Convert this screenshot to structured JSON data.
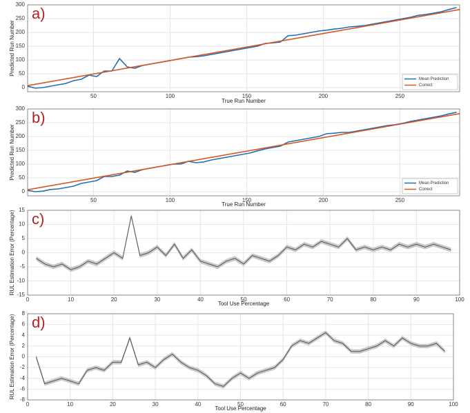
{
  "chart_data": [
    {
      "type": "line",
      "title": "a)",
      "xlabel": "True Run Number",
      "ylabel": "Predicted Run Number",
      "xlim": [
        7,
        289
      ],
      "ylim": [
        -15,
        300
      ],
      "xticks": [
        50,
        100,
        150,
        200,
        250
      ],
      "yticks": [
        0,
        50,
        100,
        150,
        200,
        250,
        300
      ],
      "grid": true,
      "legend": "lower right",
      "series": [
        {
          "name": "Mean Prediction",
          "color": "#1f6fb5",
          "x": [
            7,
            12,
            17,
            22,
            27,
            32,
            37,
            42,
            47,
            52,
            57,
            62,
            67,
            72,
            77,
            82,
            87,
            92,
            97,
            102,
            107,
            112,
            117,
            122,
            127,
            132,
            137,
            142,
            147,
            152,
            157,
            162,
            167,
            172,
            177,
            182,
            187,
            192,
            197,
            202,
            207,
            212,
            217,
            222,
            227,
            232,
            237,
            242,
            247,
            252,
            257,
            262,
            267,
            272,
            277,
            282,
            287
          ],
          "values": [
            5,
            -2,
            0,
            5,
            10,
            15,
            25,
            30,
            45,
            40,
            60,
            60,
            105,
            75,
            70,
            80,
            85,
            90,
            95,
            100,
            105,
            110,
            112,
            115,
            120,
            125,
            130,
            135,
            140,
            145,
            150,
            160,
            162,
            165,
            188,
            190,
            195,
            200,
            205,
            208,
            212,
            215,
            220,
            222,
            225,
            230,
            235,
            240,
            245,
            250,
            255,
            262,
            265,
            270,
            275,
            283,
            290
          ]
        },
        {
          "name": "Correct",
          "color": "#d9541e",
          "x": [
            7,
            289
          ],
          "values": [
            7,
            283
          ]
        }
      ]
    },
    {
      "type": "line",
      "title": "b)",
      "xlabel": "True Run Number",
      "ylabel": "Predicted Run Number",
      "xlim": [
        7,
        289
      ],
      "ylim": [
        -15,
        300
      ],
      "xticks": [
        50,
        100,
        150,
        200,
        250
      ],
      "yticks": [
        0,
        50,
        100,
        150,
        200,
        250,
        300
      ],
      "grid": true,
      "legend": "lower right",
      "series": [
        {
          "name": "Mean Prediction",
          "color": "#1f6fb5",
          "x": [
            7,
            12,
            17,
            22,
            27,
            32,
            37,
            42,
            47,
            52,
            57,
            62,
            67,
            72,
            77,
            82,
            87,
            92,
            97,
            102,
            107,
            112,
            117,
            122,
            127,
            132,
            137,
            142,
            147,
            152,
            157,
            162,
            167,
            172,
            177,
            182,
            187,
            192,
            197,
            202,
            207,
            212,
            217,
            222,
            227,
            232,
            237,
            242,
            247,
            252,
            257,
            262,
            267,
            272,
            277,
            282,
            287
          ],
          "values": [
            5,
            0,
            2,
            8,
            10,
            15,
            20,
            30,
            35,
            40,
            55,
            55,
            60,
            75,
            70,
            80,
            85,
            90,
            95,
            100,
            100,
            110,
            105,
            108,
            115,
            120,
            125,
            130,
            135,
            140,
            148,
            155,
            160,
            165,
            180,
            185,
            190,
            195,
            200,
            210,
            212,
            215,
            215,
            220,
            225,
            230,
            235,
            240,
            243,
            248,
            255,
            260,
            265,
            270,
            275,
            282,
            288
          ]
        },
        {
          "name": "Correct",
          "color": "#d9541e",
          "x": [
            7,
            289
          ],
          "values": [
            7,
            283
          ]
        }
      ]
    },
    {
      "type": "band",
      "title": "c)",
      "xlabel": "Tool Use Percentage",
      "ylabel": "RUL Estimation Error (Percentage)",
      "xlim": [
        0,
        100
      ],
      "ylim": [
        -15,
        15
      ],
      "xticks": [
        0,
        10,
        20,
        30,
        40,
        50,
        60,
        70,
        80,
        90,
        100
      ],
      "yticks": [
        -15,
        -10,
        -5,
        0,
        5,
        10,
        15
      ],
      "grid": true,
      "series": [
        {
          "color": "#555555",
          "error": 0.8,
          "x": [
            2,
            4,
            6,
            8,
            10,
            12,
            14,
            16,
            18,
            20,
            22,
            24,
            26,
            28,
            30,
            32,
            34,
            36,
            38,
            40,
            42,
            44,
            46,
            48,
            50,
            52,
            54,
            56,
            58,
            60,
            62,
            64,
            66,
            68,
            70,
            72,
            74,
            76,
            78,
            80,
            82,
            84,
            86,
            88,
            90,
            92,
            94,
            96,
            98
          ],
          "values": [
            -2,
            -4,
            -5,
            -4,
            -6,
            -5,
            -3,
            -4,
            -2,
            0,
            -2,
            13,
            -1,
            0,
            2,
            -1,
            3,
            -2,
            1,
            -3,
            -4,
            -5,
            -3,
            -2,
            -4,
            -1,
            -2,
            -3,
            -1,
            2,
            1,
            3,
            2,
            4,
            3,
            2,
            5,
            1,
            2,
            1,
            2,
            1,
            3,
            2,
            3,
            2,
            3,
            2,
            1
          ]
        }
      ]
    },
    {
      "type": "band",
      "title": "d)",
      "xlabel": "Tool Use Percentage",
      "ylabel": "RUL Estimation Error (Percentage)",
      "xlim": [
        0,
        100
      ],
      "ylim": [
        -8,
        8
      ],
      "xticks": [
        0,
        10,
        20,
        30,
        40,
        50,
        60,
        70,
        80,
        90,
        100
      ],
      "yticks": [
        -8,
        -6,
        -4,
        -2,
        0,
        2,
        4,
        6,
        8
      ],
      "grid": true,
      "series": [
        {
          "color": "#555555",
          "error": 0.4,
          "x": [
            2,
            4,
            6,
            8,
            10,
            12,
            14,
            16,
            18,
            20,
            22,
            24,
            26,
            28,
            30,
            32,
            34,
            36,
            38,
            40,
            42,
            44,
            46,
            48,
            50,
            52,
            54,
            56,
            58,
            60,
            62,
            64,
            66,
            68,
            70,
            72,
            74,
            76,
            78,
            80,
            82,
            84,
            86,
            88,
            90,
            92,
            94,
            96,
            98
          ],
          "values": [
            0,
            -5,
            -4.5,
            -4,
            -4.5,
            -5,
            -2.5,
            -2,
            -2.5,
            -1,
            -1,
            3.5,
            -1.5,
            -1,
            -2,
            -0.5,
            0.5,
            -1,
            -2,
            -2.5,
            -3.5,
            -5,
            -5.5,
            -4,
            -3,
            -4,
            -3,
            -2.5,
            -2,
            -0.5,
            2,
            3,
            2.5,
            3.5,
            4.5,
            3,
            2.5,
            1,
            1,
            1.5,
            2,
            3,
            2,
            3.5,
            2.5,
            2,
            2,
            2.5,
            1
          ]
        }
      ]
    }
  ]
}
